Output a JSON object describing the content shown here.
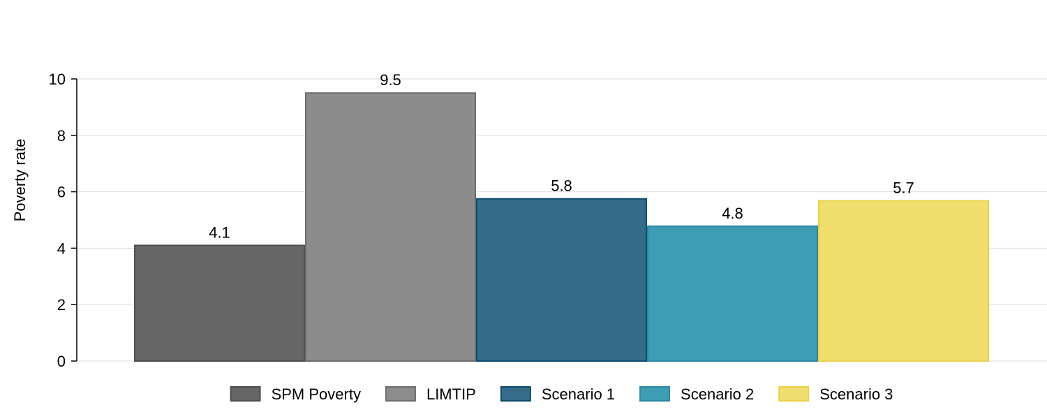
{
  "chart_data": {
    "type": "bar",
    "title": "",
    "xlabel": "",
    "ylabel": "Poverty rate",
    "ylim": [
      0,
      10
    ],
    "yticks": [
      0,
      2,
      4,
      6,
      8,
      10
    ],
    "grid": true,
    "legend_position": "bottom",
    "series": [
      {
        "name": "SPM Poverty",
        "value": 4.1,
        "label": "4.1",
        "fill": "#666666",
        "stroke": "#4f4f4f"
      },
      {
        "name": "LIMTIP",
        "value": 9.5,
        "label": "9.5",
        "fill": "#8c8c8c",
        "stroke": "#6e6e6e"
      },
      {
        "name": "Scenario 1",
        "value": 5.75,
        "label": "5.8",
        "fill": "#346c8a",
        "stroke": "#0f4a6b"
      },
      {
        "name": "Scenario 2",
        "value": 4.78,
        "label": "4.8",
        "fill": "#3e9db3",
        "stroke": "#2a8aa3"
      },
      {
        "name": "Scenario 3",
        "value": 5.68,
        "label": "5.7",
        "fill": "#f0de6e",
        "stroke": "#ead24a"
      }
    ]
  }
}
